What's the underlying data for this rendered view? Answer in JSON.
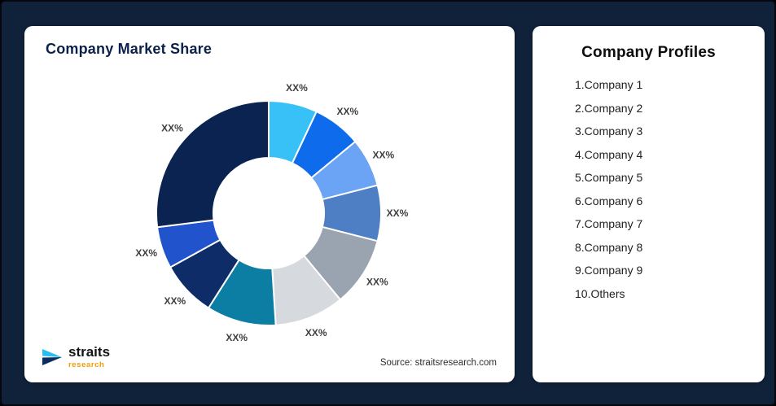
{
  "left_card": {
    "title": "Company Market Share",
    "source": "Source: straitsresearch.com",
    "logo": {
      "brand": "straits",
      "sub": "research"
    }
  },
  "right_card": {
    "title": "Company Profiles",
    "items": [
      "1.Company 1",
      "2.Company 2",
      "3.Company 3",
      "4.Company 4",
      "5.Company 5",
      "6.Company 6",
      "7.Company 7",
      "8.Company 8",
      "9.Company 9",
      "10.Others"
    ]
  },
  "chart_data": {
    "type": "pie",
    "subtype": "donut",
    "title": "Company Market Share",
    "labels": [
      "Company 1",
      "Company 2",
      "Company 3",
      "Company 4",
      "Company 5",
      "Company 6",
      "Company 7",
      "Company 8",
      "Company 9",
      "Others"
    ],
    "values": [
      7,
      7,
      7,
      8,
      10,
      10,
      10,
      8,
      6,
      27
    ],
    "values_note": "approximate shares estimated from slice angles; on-chart labels are XX% placeholders",
    "display_labels": [
      "XX%",
      "XX%",
      "XX%",
      "XX%",
      "XX%",
      "XX%",
      "XX%",
      "XX%",
      "XX%",
      "XX%"
    ],
    "colors": [
      "#38c1f7",
      "#0e6beb",
      "#6ba3f5",
      "#4e7ec3",
      "#9aa4b1",
      "#d6dade",
      "#0d7ea3",
      "#0e2d68",
      "#2153cd",
      "#0a2351"
    ],
    "inner_radius_ratio": 0.49,
    "start_angle_deg": 0,
    "legend_position": "none",
    "accent_colors": {
      "background": "#10223a",
      "title": "#0b2149",
      "label_text": "#3f3f3f"
    }
  }
}
